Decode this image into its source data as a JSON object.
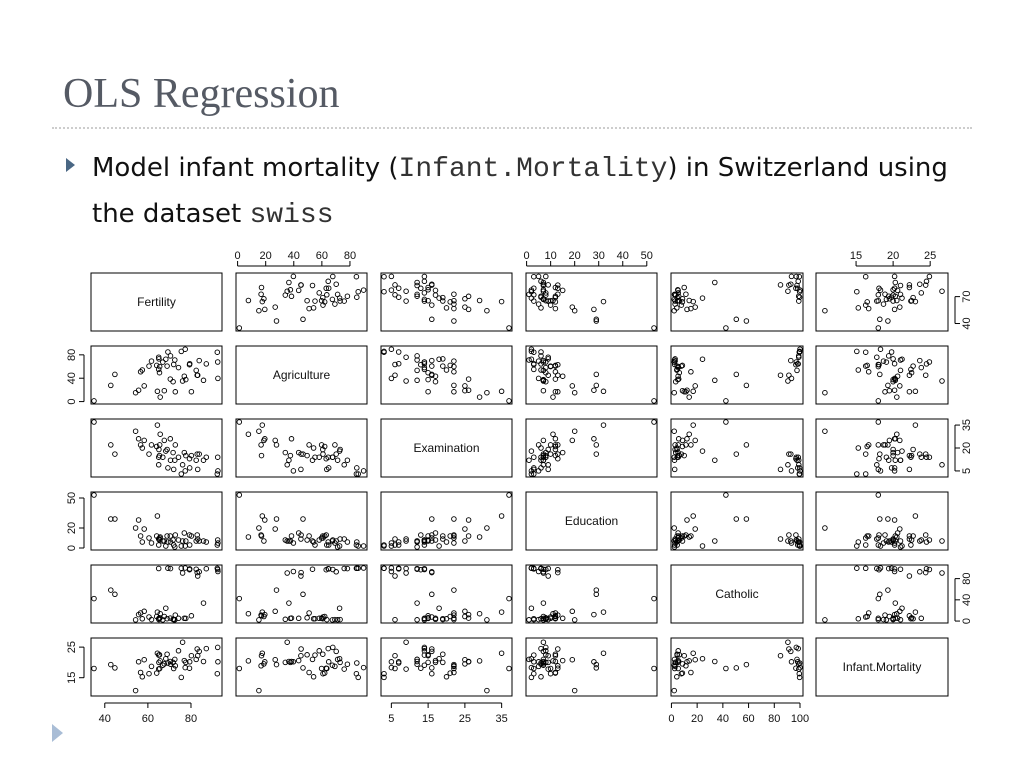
{
  "slide": {
    "title": "OLS Regression",
    "bullet": {
      "t1": "Model infant mortality (",
      "code1": "Infant.Mortality",
      "t2": ") in Switzerland using the dataset ",
      "code2": "swiss"
    }
  },
  "chart_data": {
    "type": "scatter",
    "layout": "pairs-matrix",
    "variables": [
      "Fertility",
      "Agriculture",
      "Examination",
      "Education",
      "Catholic",
      "Infant.Mortality"
    ],
    "ranges": [
      [
        35,
        93
      ],
      [
        1,
        90
      ],
      [
        3,
        37
      ],
      [
        1,
        53
      ],
      [
        2,
        100
      ],
      [
        10,
        27
      ]
    ],
    "axis_ticks": [
      [
        40,
        60,
        80
      ],
      [
        0,
        20,
        40,
        60,
        80
      ],
      [
        5,
        15,
        25,
        35
      ],
      [
        0,
        10,
        20,
        30,
        40,
        50
      ],
      [
        0,
        20,
        40,
        60,
        80,
        100
      ],
      [
        15,
        20,
        25
      ]
    ],
    "left_axis_ticks": [
      [
        40,
        70
      ],
      [
        0,
        40,
        80
      ],
      [
        5,
        20,
        35
      ],
      [
        0,
        20,
        50
      ],
      [
        0,
        40,
        80
      ],
      [
        15,
        25
      ]
    ],
    "grid": false,
    "observations": {
      "Fertility": [
        80.2,
        83.1,
        92.5,
        85.8,
        76.9,
        76.1,
        83.8,
        92.4,
        82.4,
        82.9,
        87.1,
        64.1,
        66.9,
        68.9,
        61.7,
        68.3,
        71.7,
        55.7,
        54.3,
        65.1,
        65.5,
        65.0,
        56.6,
        57.4,
        72.5,
        74.2,
        72.0,
        60.5,
        58.3,
        65.4,
        75.5,
        69.3,
        77.3,
        70.5,
        79.4,
        65.0,
        92.2,
        79.3,
        70.4,
        65.7,
        72.7,
        64.4,
        77.6,
        67.6,
        35.0,
        44.7,
        42.8
      ],
      "Agriculture": [
        17.0,
        45.1,
        39.7,
        36.5,
        43.5,
        35.3,
        70.2,
        67.8,
        53.3,
        45.2,
        64.5,
        62.0,
        67.5,
        60.7,
        69.3,
        72.6,
        34.0,
        19.4,
        15.2,
        73.0,
        59.8,
        55.1,
        50.9,
        54.1,
        71.2,
        58.1,
        63.5,
        60.8,
        26.8,
        49.5,
        85.9,
        84.9,
        89.7,
        78.2,
        64.9,
        75.9,
        84.6,
        63.1,
        38.4,
        7.7,
        16.7,
        17.6,
        37.6,
        18.7,
        1.2,
        46.6,
        27.7
      ],
      "Examination": [
        15,
        6,
        5,
        12,
        17,
        9,
        16,
        14,
        12,
        16,
        14,
        21,
        14,
        19,
        22,
        18,
        17,
        26,
        31,
        19,
        22,
        14,
        22,
        20,
        12,
        14,
        6,
        16,
        25,
        15,
        3,
        7,
        5,
        12,
        7,
        9,
        3,
        13,
        26,
        29,
        22,
        35,
        15,
        25,
        37,
        16,
        22
      ],
      "Education": [
        12,
        9,
        5,
        7,
        15,
        7,
        7,
        8,
        7,
        13,
        6,
        12,
        7,
        12,
        5,
        2,
        8,
        28,
        20,
        9,
        10,
        3,
        12,
        6,
        1,
        8,
        3,
        10,
        19,
        8,
        2,
        6,
        2,
        6,
        3,
        9,
        3,
        13,
        12,
        11,
        13,
        32,
        7,
        7,
        53,
        29,
        29
      ],
      "Catholic": [
        9.96,
        84.84,
        93.4,
        33.77,
        5.16,
        90.57,
        92.85,
        97.16,
        97.67,
        91.38,
        98.61,
        8.52,
        2.27,
        4.43,
        2.82,
        24.2,
        3.3,
        12.11,
        2.15,
        2.84,
        5.23,
        4.52,
        15.14,
        4.2,
        2.4,
        5.23,
        2.56,
        7.72,
        18.46,
        6.1,
        99.71,
        99.68,
        100.0,
        98.96,
        98.22,
        99.06,
        99.46,
        96.83,
        5.62,
        13.79,
        11.22,
        16.92,
        4.97,
        8.65,
        42.34,
        50.43,
        58.33
      ],
      "Infant.Mortality": [
        22.2,
        22.2,
        20.2,
        20.3,
        20.6,
        26.6,
        23.6,
        24.9,
        21.0,
        24.4,
        24.5,
        16.5,
        19.1,
        22.7,
        18.7,
        21.2,
        20.0,
        20.2,
        10.8,
        20.0,
        18.0,
        22.4,
        16.7,
        15.3,
        21.0,
        23.8,
        18.0,
        16.3,
        20.9,
        22.5,
        15.1,
        19.8,
        18.3,
        19.4,
        20.2,
        17.8,
        16.3,
        18.1,
        20.3,
        20.5,
        18.9,
        23.0,
        20.0,
        19.5,
        18.0,
        18.2,
        19.3
      ]
    }
  }
}
